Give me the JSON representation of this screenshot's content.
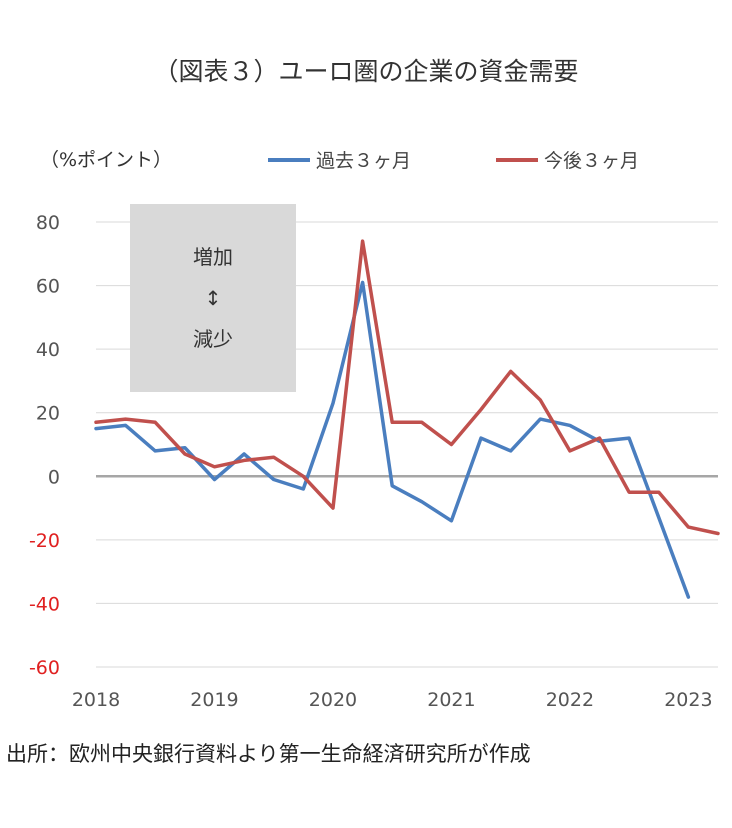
{
  "title": "（図表３）ユーロ圏の企業の資金需要",
  "source": "出所：欧州中央銀行資料より第一生命経済研究所が作成",
  "colors": {
    "past": "#4a7ebf",
    "future": "#c0504d",
    "negative_tick": "#e02020",
    "grid": "#d9d9d9",
    "zero_line": "#a6a6a6",
    "annotation_box": "#d9d9d9"
  },
  "chart_data": {
    "type": "line",
    "title": "（図表３）ユーロ圏の企業の資金需要",
    "ylabel": "（%ポイント）",
    "xlabel": "",
    "ylim": [
      -60,
      80
    ],
    "yticks": [
      80,
      60,
      40,
      20,
      0,
      -20,
      -40,
      -60
    ],
    "xlim": [
      2018.0,
      2023.25
    ],
    "xticks": [
      2018,
      2019,
      2020,
      2021,
      2022,
      2023
    ],
    "xtick_labels": [
      "2018",
      "2019",
      "2020",
      "2021",
      "2022",
      "2023"
    ],
    "grid": true,
    "legend_position": "top",
    "annotation": {
      "top": "増加",
      "middle": "↕",
      "bottom": "減少"
    },
    "series": [
      {
        "name": "過去３ヶ月",
        "color": "#4a7ebf",
        "x": [
          2018.0,
          2018.25,
          2018.5,
          2018.75,
          2019.0,
          2019.25,
          2019.5,
          2019.75,
          2020.0,
          2020.25,
          2020.5,
          2020.75,
          2021.0,
          2021.25,
          2021.5,
          2021.75,
          2022.0,
          2022.25,
          2022.5,
          2022.75,
          2023.0
        ],
        "values": [
          15,
          16,
          8,
          9,
          -1,
          7,
          -1,
          -4,
          23,
          61,
          -3,
          -8,
          -14,
          12,
          8,
          18,
          16,
          11,
          12,
          -13,
          -38
        ]
      },
      {
        "name": "今後３ヶ月",
        "color": "#c0504d",
        "x": [
          2018.0,
          2018.25,
          2018.5,
          2018.75,
          2019.0,
          2019.25,
          2019.5,
          2019.75,
          2020.0,
          2020.25,
          2020.5,
          2020.75,
          2021.0,
          2021.25,
          2021.5,
          2021.75,
          2022.0,
          2022.25,
          2022.5,
          2022.75,
          2023.0,
          2023.25
        ],
        "values": [
          17,
          18,
          17,
          7,
          3,
          5,
          6,
          0,
          -10,
          74,
          17,
          17,
          10,
          21,
          33,
          24,
          8,
          12,
          -5,
          -5,
          -16,
          -18
        ]
      }
    ]
  }
}
